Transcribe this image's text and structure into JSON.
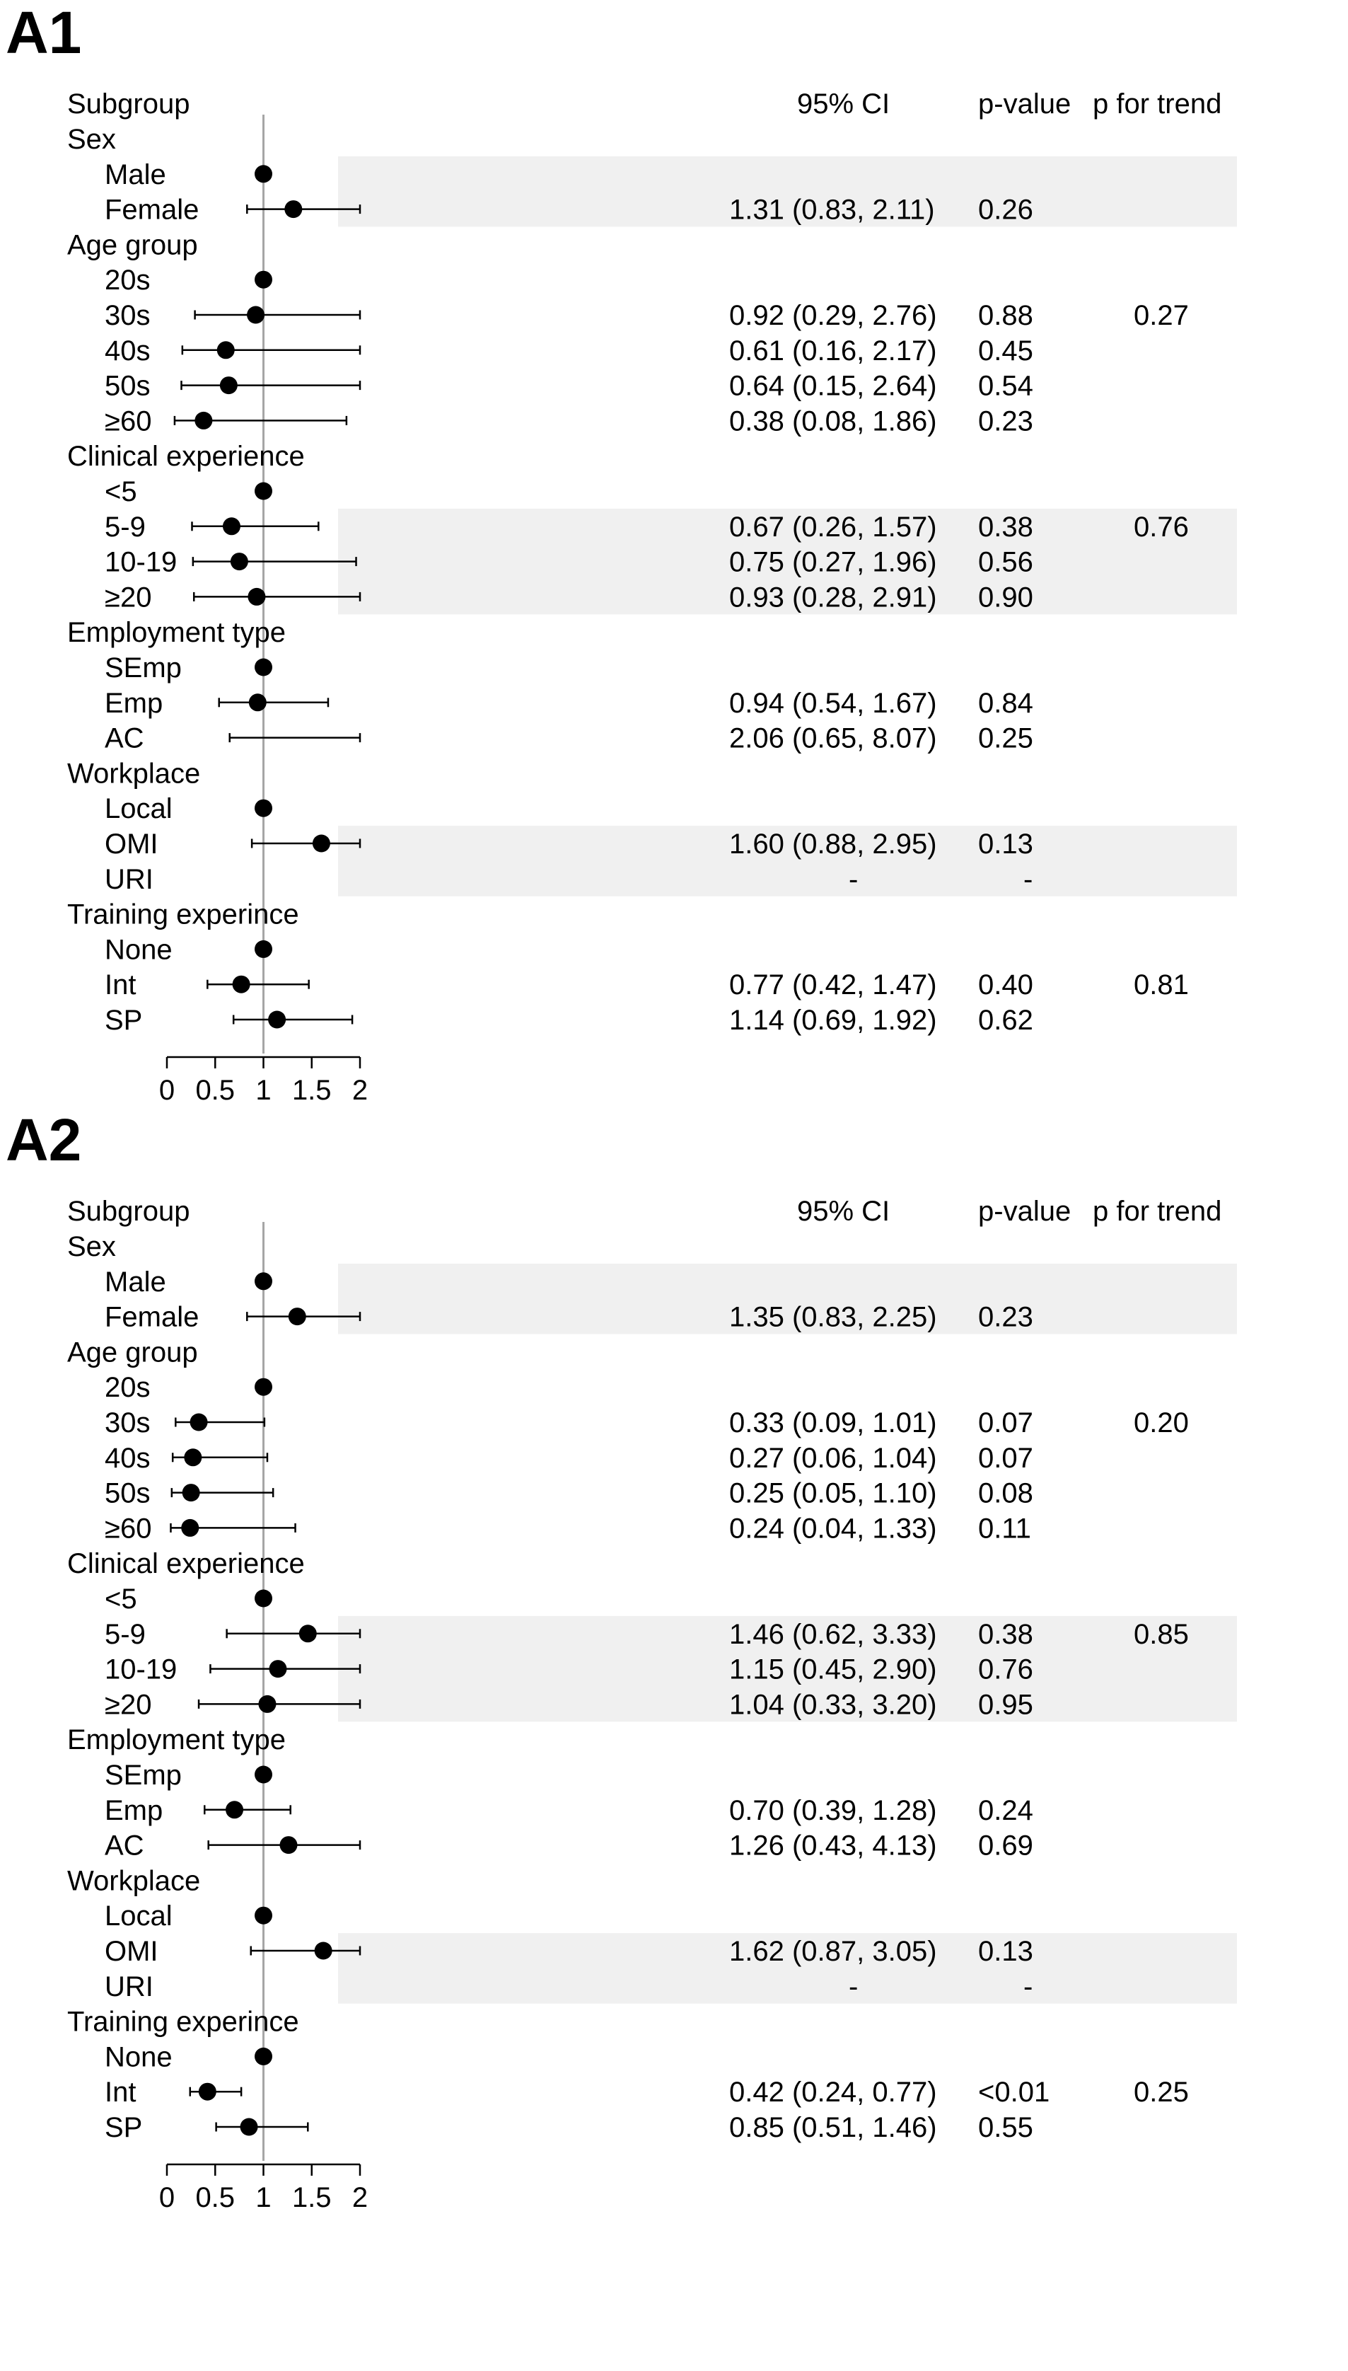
{
  "chart_data": [
    {
      "type": "forest",
      "panel_label": "A1",
      "header": {
        "subgroup": "Subgroup",
        "ci": "95% CI",
        "pvalue": "p-value",
        "trend": "p for trend"
      },
      "xaxis": {
        "ticks": [
          "0",
          "0.5",
          "1",
          "1.5",
          "2"
        ],
        "xlim": [
          0,
          2
        ],
        "reference": 1
      },
      "groups": [
        {
          "name": "Sex",
          "rows": [
            {
              "label": "Male",
              "est": 1,
              "lo": null,
              "hi": null,
              "ci": "",
              "p": "",
              "trend": "",
              "shaded": true
            },
            {
              "label": "Female",
              "est": 1.31,
              "lo": 0.83,
              "hi": 2.11,
              "ci": "1.31 (0.83, 2.11)",
              "p": "0.26",
              "trend": "",
              "shaded": true
            }
          ]
        },
        {
          "name": "Age group",
          "rows": [
            {
              "label": "20s",
              "est": 1,
              "lo": null,
              "hi": null,
              "ci": "",
              "p": "",
              "trend": "",
              "shaded": false
            },
            {
              "label": "30s",
              "est": 0.92,
              "lo": 0.29,
              "hi": 2.76,
              "ci": "0.92 (0.29, 2.76)",
              "p": "0.88",
              "trend": "0.27",
              "shaded": false
            },
            {
              "label": "40s",
              "est": 0.61,
              "lo": 0.16,
              "hi": 2.17,
              "ci": "0.61 (0.16, 2.17)",
              "p": "0.45",
              "trend": "",
              "shaded": false
            },
            {
              "label": "50s",
              "est": 0.64,
              "lo": 0.15,
              "hi": 2.64,
              "ci": "0.64 (0.15, 2.64)",
              "p": "0.54",
              "trend": "",
              "shaded": false
            },
            {
              "label": "≥60",
              "est": 0.38,
              "lo": 0.08,
              "hi": 1.86,
              "ci": "0.38 (0.08, 1.86)",
              "p": "0.23",
              "trend": "",
              "shaded": false
            }
          ]
        },
        {
          "name": "Clinical experience",
          "rows": [
            {
              "label": "<5",
              "est": 1,
              "lo": null,
              "hi": null,
              "ci": "",
              "p": "",
              "trend": "",
              "shaded": false
            },
            {
              "label": "5-9",
              "est": 0.67,
              "lo": 0.26,
              "hi": 1.57,
              "ci": "0.67 (0.26, 1.57)",
              "p": "0.38",
              "trend": "0.76",
              "shaded": true
            },
            {
              "label": "10-19",
              "est": 0.75,
              "lo": 0.27,
              "hi": 1.96,
              "ci": "0.75 (0.27, 1.96)",
              "p": "0.56",
              "trend": "",
              "shaded": true
            },
            {
              "label": "≥20",
              "est": 0.93,
              "lo": 0.28,
              "hi": 2.91,
              "ci": "0.93 (0.28, 2.91)",
              "p": "0.90",
              "trend": "",
              "shaded": true
            }
          ]
        },
        {
          "name": "Employment type",
          "rows": [
            {
              "label": "SEmp",
              "est": 1,
              "lo": null,
              "hi": null,
              "ci": "",
              "p": "",
              "trend": "",
              "shaded": false
            },
            {
              "label": "Emp",
              "est": 0.94,
              "lo": 0.54,
              "hi": 1.67,
              "ci": "0.94 (0.54, 1.67)",
              "p": "0.84",
              "trend": "",
              "shaded": false
            },
            {
              "label": "AC",
              "est": 2.06,
              "lo": 0.65,
              "hi": 8.07,
              "ci": "2.06 (0.65, 8.07)",
              "p": "0.25",
              "trend": "",
              "shaded": false
            }
          ]
        },
        {
          "name": "Workplace",
          "rows": [
            {
              "label": "Local",
              "est": 1,
              "lo": null,
              "hi": null,
              "ci": "",
              "p": "",
              "trend": "",
              "shaded": false
            },
            {
              "label": "OMI",
              "est": 1.6,
              "lo": 0.88,
              "hi": 2.95,
              "ci": "1.60 (0.88, 2.95)",
              "p": "0.13",
              "trend": "",
              "shaded": true
            },
            {
              "label": "URI",
              "est": null,
              "lo": null,
              "hi": null,
              "ci": "-",
              "p": "-",
              "trend": "",
              "shaded": true
            }
          ]
        },
        {
          "name": "Training experince",
          "rows": [
            {
              "label": "None",
              "est": 1,
              "lo": null,
              "hi": null,
              "ci": "",
              "p": "",
              "trend": "",
              "shaded": false
            },
            {
              "label": "Int",
              "est": 0.77,
              "lo": 0.42,
              "hi": 1.47,
              "ci": "0.77 (0.42, 1.47)",
              "p": "0.40",
              "trend": "0.81",
              "shaded": false
            },
            {
              "label": "SP",
              "est": 1.14,
              "lo": 0.69,
              "hi": 1.92,
              "ci": "1.14 (0.69, 1.92)",
              "p": "0.62",
              "trend": "",
              "shaded": false
            }
          ]
        }
      ]
    },
    {
      "type": "forest",
      "panel_label": "A2",
      "header": {
        "subgroup": "Subgroup",
        "ci": "95% CI",
        "pvalue": "p-value",
        "trend": "p for trend"
      },
      "xaxis": {
        "ticks": [
          "0",
          "0.5",
          "1",
          "1.5",
          "2"
        ],
        "xlim": [
          0,
          2
        ],
        "reference": 1
      },
      "groups": [
        {
          "name": "Sex",
          "rows": [
            {
              "label": "Male",
              "est": 1,
              "lo": null,
              "hi": null,
              "ci": "",
              "p": "",
              "trend": "",
              "shaded": true
            },
            {
              "label": "Female",
              "est": 1.35,
              "lo": 0.83,
              "hi": 2.25,
              "ci": "1.35 (0.83, 2.25)",
              "p": "0.23",
              "trend": "",
              "shaded": true
            }
          ]
        },
        {
          "name": "Age group",
          "rows": [
            {
              "label": "20s",
              "est": 1,
              "lo": null,
              "hi": null,
              "ci": "",
              "p": "",
              "trend": "",
              "shaded": false
            },
            {
              "label": "30s",
              "est": 0.33,
              "lo": 0.09,
              "hi": 1.01,
              "ci": "0.33 (0.09, 1.01)",
              "p": "0.07",
              "trend": "0.20",
              "shaded": false
            },
            {
              "label": "40s",
              "est": 0.27,
              "lo": 0.06,
              "hi": 1.04,
              "ci": "0.27 (0.06, 1.04)",
              "p": "0.07",
              "trend": "",
              "shaded": false
            },
            {
              "label": "50s",
              "est": 0.25,
              "lo": 0.05,
              "hi": 1.1,
              "ci": "0.25 (0.05, 1.10)",
              "p": "0.08",
              "trend": "",
              "shaded": false
            },
            {
              "label": "≥60",
              "est": 0.24,
              "lo": 0.04,
              "hi": 1.33,
              "ci": "0.24 (0.04, 1.33)",
              "p": "0.11",
              "trend": "",
              "shaded": false
            }
          ]
        },
        {
          "name": "Clinical experience",
          "rows": [
            {
              "label": "<5",
              "est": 1,
              "lo": null,
              "hi": null,
              "ci": "",
              "p": "",
              "trend": "",
              "shaded": false
            },
            {
              "label": "5-9",
              "est": 1.46,
              "lo": 0.62,
              "hi": 3.33,
              "ci": "1.46 (0.62, 3.33)",
              "p": "0.38",
              "trend": "0.85",
              "shaded": true
            },
            {
              "label": "10-19",
              "est": 1.15,
              "lo": 0.45,
              "hi": 2.9,
              "ci": "1.15 (0.45, 2.90)",
              "p": "0.76",
              "trend": "",
              "shaded": true
            },
            {
              "label": "≥20",
              "est": 1.04,
              "lo": 0.33,
              "hi": 3.2,
              "ci": "1.04 (0.33, 3.20)",
              "p": "0.95",
              "trend": "",
              "shaded": true
            }
          ]
        },
        {
          "name": "Employment type",
          "rows": [
            {
              "label": "SEmp",
              "est": 1,
              "lo": null,
              "hi": null,
              "ci": "",
              "p": "",
              "trend": "",
              "shaded": false
            },
            {
              "label": "Emp",
              "est": 0.7,
              "lo": 0.39,
              "hi": 1.28,
              "ci": "0.70 (0.39, 1.28)",
              "p": "0.24",
              "trend": "",
              "shaded": false
            },
            {
              "label": "AC",
              "est": 1.26,
              "lo": 0.43,
              "hi": 4.13,
              "ci": "1.26 (0.43, 4.13)",
              "p": "0.69",
              "trend": "",
              "shaded": false
            }
          ]
        },
        {
          "name": "Workplace",
          "rows": [
            {
              "label": "Local",
              "est": 1,
              "lo": null,
              "hi": null,
              "ci": "",
              "p": "",
              "trend": "",
              "shaded": false
            },
            {
              "label": "OMI",
              "est": 1.62,
              "lo": 0.87,
              "hi": 3.05,
              "ci": "1.62 (0.87, 3.05)",
              "p": "0.13",
              "trend": "",
              "shaded": true
            },
            {
              "label": "URI",
              "est": null,
              "lo": null,
              "hi": null,
              "ci": "-",
              "p": "-",
              "trend": "",
              "shaded": true
            }
          ]
        },
        {
          "name": "Training experince",
          "rows": [
            {
              "label": "None",
              "est": 1,
              "lo": null,
              "hi": null,
              "ci": "",
              "p": "",
              "trend": "",
              "shaded": false
            },
            {
              "label": "Int",
              "est": 0.42,
              "lo": 0.24,
              "hi": 0.77,
              "ci": "0.42 (0.24, 0.77)",
              "p": "<0.01",
              "trend": "0.25",
              "shaded": false
            },
            {
              "label": "SP",
              "est": 0.85,
              "lo": 0.51,
              "hi": 1.46,
              "ci": "0.85 (0.51, 1.46)",
              "p": "0.55",
              "trend": "",
              "shaded": false
            }
          ]
        }
      ]
    }
  ]
}
